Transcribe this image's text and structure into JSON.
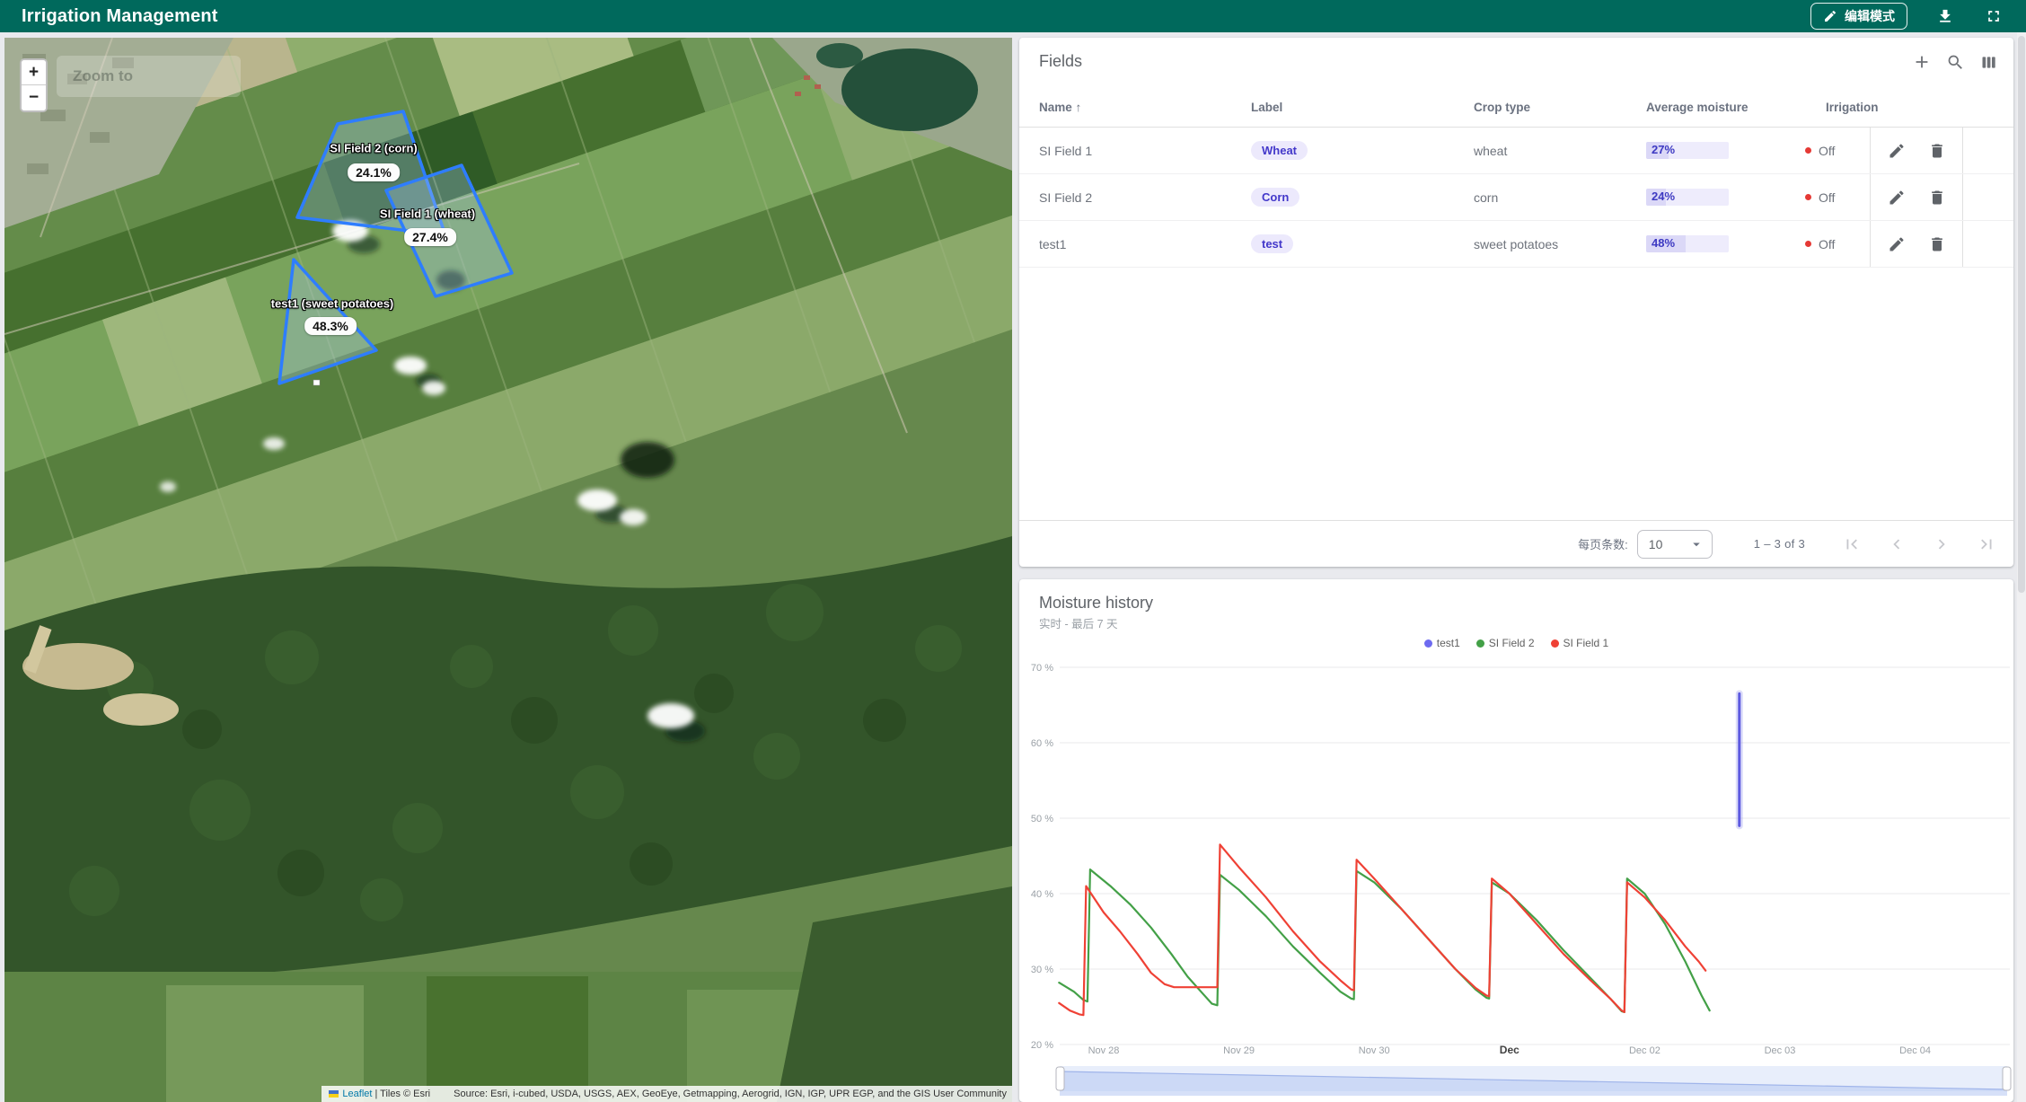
{
  "topbar": {
    "title": "Irrigation Management",
    "edit_mode_label": "编辑模式"
  },
  "map": {
    "zoom_in": "+",
    "zoom_out": "−",
    "zoom_hint": "Zoom to",
    "fields": [
      {
        "label": "SI Field 2 (corn)",
        "moisture": "24.1%"
      },
      {
        "label": "SI Field 1 (wheat)",
        "moisture": "27.4%"
      },
      {
        "label": "test1 (sweet potatoes)",
        "moisture": "48.3%"
      }
    ],
    "attribution": {
      "leaflet": "Leaflet",
      "tiles": "| Tiles © Esri",
      "source": "Source: Esri, i-cubed, USDA, USGS, AEX, GeoEye, Getmapping, Aerogrid, IGN, IGP, UPR EGP, and the GIS User Community"
    }
  },
  "fields_panel": {
    "title": "Fields",
    "sort_arrow": "↑",
    "columns": {
      "name": "Name",
      "label": "Label",
      "crop": "Crop type",
      "moisture": "Average moisture",
      "irrigation": "Irrigation"
    },
    "rows": [
      {
        "name": "SI Field 1",
        "label": "Wheat",
        "crop": "wheat",
        "moisture": "27%",
        "moisture_value": 27,
        "irrigation": "Off"
      },
      {
        "name": "SI Field 2",
        "label": "Corn",
        "crop": "corn",
        "moisture": "24%",
        "moisture_value": 24,
        "irrigation": "Off"
      },
      {
        "name": "test1",
        "label": "test",
        "crop": "sweet potatoes",
        "moisture": "48%",
        "moisture_value": 48,
        "irrigation": "Off"
      }
    ],
    "pagination": {
      "rows_per_page_label": "每页条数:",
      "rows_per_page": "10",
      "range": "1 – 3 of 3"
    }
  },
  "chart_data": {
    "type": "line",
    "title": "Moisture history",
    "subtitle": "实时 - 最后 7 天",
    "ylim": [
      20,
      70
    ],
    "yticks": [
      "70 %",
      "60 %",
      "50 %",
      "40 %",
      "30 %",
      "20 %"
    ],
    "ytick_values": [
      70,
      60,
      50,
      40,
      30,
      20
    ],
    "xticks": [
      "Nov 28",
      "Nov 29",
      "Nov 30",
      "Dec",
      "Dec 02",
      "Dec 03",
      "Dec 04"
    ],
    "legend": [
      {
        "name": "test1",
        "color": "#6d6af0"
      },
      {
        "name": "SI Field 2",
        "color": "#43a047"
      },
      {
        "name": "SI Field 1",
        "color": "#ef4135"
      }
    ],
    "series": [
      {
        "name": "SI Field 2",
        "color": "#43a047",
        "points": [
          [
            -0.33,
            28.2
          ],
          [
            -0.22,
            27.0
          ],
          [
            -0.15,
            25.9
          ],
          [
            -0.12,
            25.7
          ],
          [
            -0.1,
            43.2
          ],
          [
            0.05,
            41.0
          ],
          [
            0.2,
            38.5
          ],
          [
            0.35,
            35.5
          ],
          [
            0.5,
            32.0
          ],
          [
            0.62,
            29.0
          ],
          [
            0.72,
            27.0
          ],
          [
            0.8,
            25.4
          ],
          [
            0.84,
            25.2
          ],
          [
            0.86,
            42.5
          ],
          [
            1.0,
            40.5
          ],
          [
            1.2,
            37.0
          ],
          [
            1.4,
            33.0
          ],
          [
            1.6,
            29.5
          ],
          [
            1.75,
            27.0
          ],
          [
            1.83,
            26.1
          ],
          [
            1.85,
            26.0
          ],
          [
            1.87,
            43.0
          ],
          [
            2.0,
            41.5
          ],
          [
            2.2,
            38.0
          ],
          [
            2.4,
            34.0
          ],
          [
            2.6,
            30.0
          ],
          [
            2.75,
            27.3
          ],
          [
            2.83,
            26.2
          ],
          [
            2.85,
            26.1
          ],
          [
            2.87,
            41.5
          ],
          [
            3.0,
            40.0
          ],
          [
            3.2,
            36.5
          ],
          [
            3.4,
            32.5
          ],
          [
            3.6,
            28.8
          ],
          [
            3.75,
            26.0
          ],
          [
            3.83,
            24.4
          ],
          [
            3.85,
            24.3
          ],
          [
            3.87,
            42.0
          ],
          [
            4.0,
            40.0
          ],
          [
            4.15,
            36.0
          ],
          [
            4.3,
            31.0
          ],
          [
            4.42,
            26.5
          ],
          [
            4.48,
            24.5
          ]
        ]
      },
      {
        "name": "SI Field 1",
        "color": "#ef4135",
        "points": [
          [
            -0.33,
            25.5
          ],
          [
            -0.25,
            24.5
          ],
          [
            -0.18,
            24.0
          ],
          [
            -0.15,
            23.9
          ],
          [
            -0.13,
            41.0
          ],
          [
            0.0,
            37.5
          ],
          [
            0.12,
            35.0
          ],
          [
            0.25,
            32.0
          ],
          [
            0.35,
            29.5
          ],
          [
            0.45,
            28.0
          ],
          [
            0.52,
            27.6
          ],
          [
            0.84,
            27.6
          ],
          [
            0.86,
            46.5
          ],
          [
            1.0,
            43.5
          ],
          [
            1.2,
            39.5
          ],
          [
            1.4,
            35.0
          ],
          [
            1.6,
            31.0
          ],
          [
            1.75,
            28.5
          ],
          [
            1.83,
            27.3
          ],
          [
            1.85,
            27.2
          ],
          [
            1.87,
            44.5
          ],
          [
            2.0,
            42.0
          ],
          [
            2.2,
            38.0
          ],
          [
            2.4,
            34.0
          ],
          [
            2.6,
            30.0
          ],
          [
            2.75,
            27.5
          ],
          [
            2.83,
            26.5
          ],
          [
            2.85,
            26.4
          ],
          [
            2.87,
            42.0
          ],
          [
            3.0,
            40.0
          ],
          [
            3.2,
            36.0
          ],
          [
            3.4,
            32.0
          ],
          [
            3.6,
            28.5
          ],
          [
            3.75,
            26.0
          ],
          [
            3.83,
            24.5
          ],
          [
            3.85,
            24.3
          ],
          [
            3.87,
            41.5
          ],
          [
            4.0,
            39.5
          ],
          [
            4.15,
            36.5
          ],
          [
            4.3,
            33.0
          ],
          [
            4.4,
            31.0
          ],
          [
            4.45,
            29.8
          ]
        ]
      },
      {
        "name": "test1",
        "color": "#5d5ae0",
        "vertical": true,
        "points": [
          [
            4.7,
            49.0
          ],
          [
            4.7,
            66.5
          ]
        ]
      }
    ]
  }
}
